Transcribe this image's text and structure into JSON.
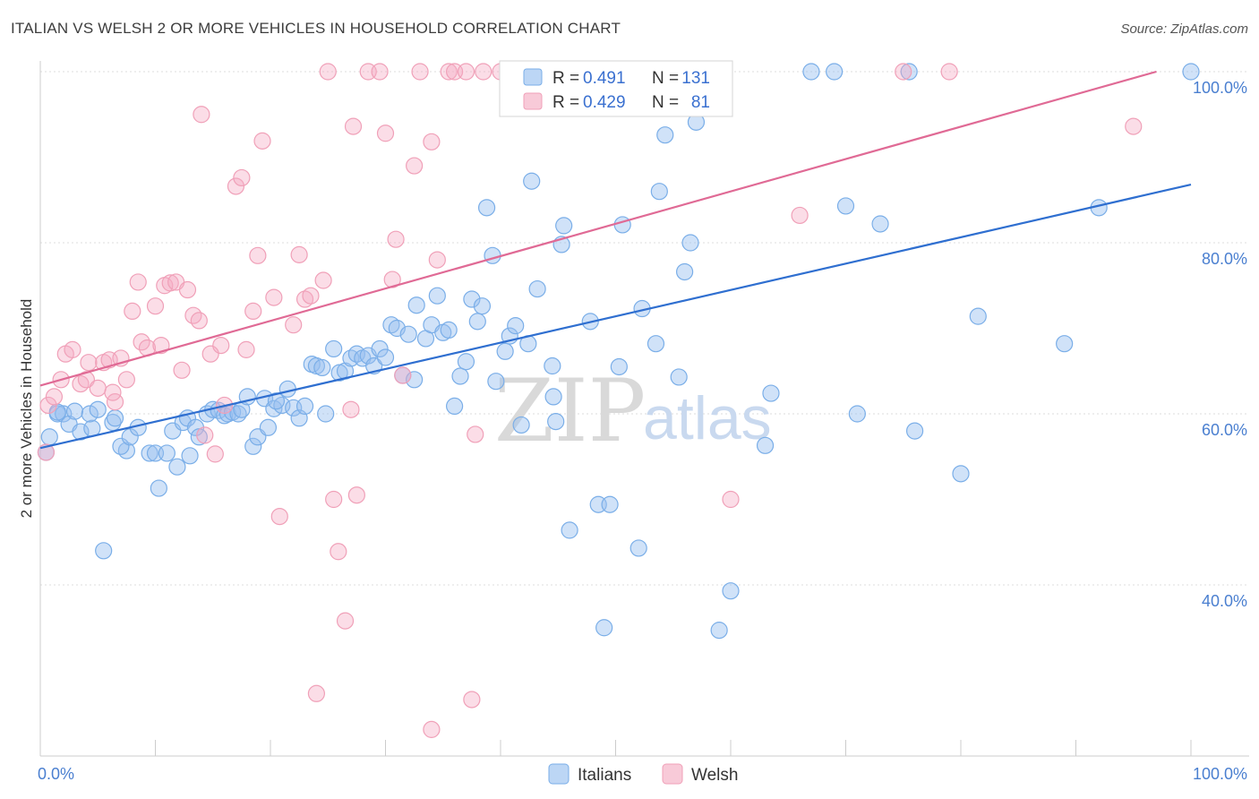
{
  "title": "ITALIAN VS WELSH 2 OR MORE VEHICLES IN HOUSEHOLD CORRELATION CHART",
  "source": "Source: ZipAtlas.com",
  "watermark": {
    "zip": "ZIP",
    "atlas": "atlas"
  },
  "legend_top": [
    {
      "r_label": "R =",
      "r_value": "0.491",
      "n_label": "N =",
      "n_value": "131",
      "color": "#7aaee8"
    },
    {
      "r_label": "R =",
      "r_value": "0.429",
      "n_label": "N =",
      "n_value": "81",
      "color": "#f0a0b8"
    }
  ],
  "legend_bottom": [
    {
      "label": "Italians",
      "color": "#7aaee8"
    },
    {
      "label": "Welsh",
      "color": "#f0a0b8"
    }
  ],
  "chart_data": {
    "type": "scatter",
    "title": "ITALIAN VS WELSH 2 OR MORE VEHICLES IN HOUSEHOLD CORRELATION CHART",
    "xlabel": "",
    "ylabel": "2 or more Vehicles in Household",
    "xlim": [
      0,
      100
    ],
    "ylim": [
      20,
      102
    ],
    "x_tick_labels": [
      "0.0%",
      "100.0%"
    ],
    "y_ticks": [
      40,
      60,
      80,
      100
    ],
    "y_tick_labels": [
      "40.0%",
      "60.0%",
      "80.0%",
      "100.0%"
    ],
    "grid": true,
    "legend": "top-center",
    "series": [
      {
        "name": "Italians",
        "color": "#7aaee8",
        "line_color": "#2f6fd0",
        "trend": {
          "x": [
            0,
            100
          ],
          "y": [
            56.0,
            86.8
          ]
        },
        "points": [
          [
            0.5,
            55.5
          ],
          [
            0.8,
            57.3
          ],
          [
            1.5,
            60.0
          ],
          [
            2.0,
            60.0
          ],
          [
            2.5,
            58.8
          ],
          [
            3.0,
            60.3
          ],
          [
            3.5,
            57.9
          ],
          [
            4.5,
            58.3
          ],
          [
            4.3,
            60.0
          ],
          [
            5.0,
            60.5
          ],
          [
            6.3,
            59.0
          ],
          [
            6.5,
            59.5
          ],
          [
            7.5,
            55.7
          ],
          [
            7.0,
            56.2
          ],
          [
            7.8,
            57.3
          ],
          [
            8.5,
            58.4
          ],
          [
            9.5,
            55.4
          ],
          [
            10.0,
            55.4
          ],
          [
            10.3,
            51.3
          ],
          [
            11.0,
            55.4
          ],
          [
            11.5,
            58.0
          ],
          [
            11.9,
            53.8
          ],
          [
            12.4,
            59.0
          ],
          [
            12.8,
            59.5
          ],
          [
            13.0,
            55.1
          ],
          [
            13.5,
            58.4
          ],
          [
            13.8,
            57.3
          ],
          [
            14.5,
            60.0
          ],
          [
            15.0,
            60.5
          ],
          [
            15.5,
            60.4
          ],
          [
            16.0,
            59.8
          ],
          [
            16.3,
            60.0
          ],
          [
            16.7,
            60.2
          ],
          [
            17.2,
            60.0
          ],
          [
            17.5,
            60.5
          ],
          [
            18.0,
            62.0
          ],
          [
            18.5,
            56.2
          ],
          [
            18.9,
            57.3
          ],
          [
            19.5,
            61.8
          ],
          [
            19.8,
            58.4
          ],
          [
            20.3,
            60.6
          ],
          [
            21.0,
            61.0
          ],
          [
            21.5,
            62.9
          ],
          [
            22.0,
            60.7
          ],
          [
            22.5,
            59.5
          ],
          [
            23.0,
            60.9
          ],
          [
            23.6,
            65.8
          ],
          [
            24.0,
            65.6
          ],
          [
            24.5,
            65.4
          ],
          [
            24.8,
            60.0
          ],
          [
            25.5,
            67.6
          ],
          [
            26.0,
            64.8
          ],
          [
            26.5,
            65.0
          ],
          [
            27.0,
            66.5
          ],
          [
            27.5,
            67.0
          ],
          [
            28.0,
            66.5
          ],
          [
            28.5,
            66.8
          ],
          [
            29.0,
            65.6
          ],
          [
            29.5,
            67.6
          ],
          [
            30.0,
            66.6
          ],
          [
            30.5,
            70.4
          ],
          [
            31.0,
            70.0
          ],
          [
            31.5,
            64.5
          ],
          [
            32.0,
            69.3
          ],
          [
            32.5,
            64.0
          ],
          [
            32.7,
            72.7
          ],
          [
            33.5,
            68.8
          ],
          [
            34.0,
            70.4
          ],
          [
            34.5,
            73.8
          ],
          [
            35.0,
            69.5
          ],
          [
            35.5,
            69.8
          ],
          [
            36.0,
            60.9
          ],
          [
            36.5,
            64.4
          ],
          [
            37.0,
            66.1
          ],
          [
            37.5,
            73.4
          ],
          [
            38.0,
            70.8
          ],
          [
            38.4,
            72.6
          ],
          [
            38.8,
            84.1
          ],
          [
            39.3,
            78.5
          ],
          [
            39.6,
            63.8
          ],
          [
            40.4,
            67.3
          ],
          [
            40.8,
            69.1
          ],
          [
            41.3,
            70.3
          ],
          [
            41.8,
            58.7
          ],
          [
            42.4,
            68.2
          ],
          [
            42.7,
            87.2
          ],
          [
            43.2,
            74.6
          ],
          [
            44.5,
            65.6
          ],
          [
            44.6,
            62.0
          ],
          [
            44.8,
            59.1
          ],
          [
            45.3,
            79.8
          ],
          [
            45.5,
            82.0
          ],
          [
            46.0,
            46.4
          ],
          [
            47.8,
            70.8
          ],
          [
            48.5,
            49.4
          ],
          [
            49.0,
            35.0
          ],
          [
            49.5,
            49.4
          ],
          [
            50.3,
            65.5
          ],
          [
            50.6,
            82.1
          ],
          [
            51.5,
            100.0
          ],
          [
            52.0,
            44.3
          ],
          [
            52.3,
            72.3
          ],
          [
            53.5,
            68.2
          ],
          [
            53.8,
            86.0
          ],
          [
            54.3,
            92.6
          ],
          [
            55.5,
            64.3
          ],
          [
            56.0,
            76.6
          ],
          [
            56.5,
            80.0
          ],
          [
            57.0,
            94.1
          ],
          [
            59.0,
            34.7
          ],
          [
            60.0,
            39.3
          ],
          [
            63.0,
            56.3
          ],
          [
            63.5,
            62.4
          ],
          [
            67.0,
            100.0
          ],
          [
            69.0,
            100.0
          ],
          [
            70.0,
            84.3
          ],
          [
            71.0,
            60.0
          ],
          [
            73.0,
            82.2
          ],
          [
            75.5,
            100.0
          ],
          [
            76.0,
            58.0
          ],
          [
            80.0,
            53.0
          ],
          [
            81.5,
            71.4
          ],
          [
            89.0,
            68.2
          ],
          [
            92.0,
            84.1
          ],
          [
            100.0,
            100.0
          ],
          [
            1.5,
            60.2
          ],
          [
            5.5,
            44.0
          ],
          [
            47.3,
            100.0
          ],
          [
            20.5,
            61.5
          ]
        ]
      },
      {
        "name": "Welsh",
        "color": "#f0a0b8",
        "line_color": "#e06a95",
        "trend": {
          "x": [
            0,
            97
          ],
          "y": [
            63.3,
            100.0
          ]
        },
        "points": [
          [
            0.5,
            55.5
          ],
          [
            0.7,
            61.0
          ],
          [
            1.2,
            62.0
          ],
          [
            1.8,
            64.0
          ],
          [
            2.2,
            67.0
          ],
          [
            2.8,
            67.5
          ],
          [
            3.5,
            63.5
          ],
          [
            4.0,
            64.0
          ],
          [
            4.2,
            66.0
          ],
          [
            5.0,
            63.0
          ],
          [
            5.5,
            66.0
          ],
          [
            6.0,
            66.3
          ],
          [
            6.5,
            61.4
          ],
          [
            6.3,
            62.5
          ],
          [
            7.0,
            66.5
          ],
          [
            7.5,
            64.0
          ],
          [
            8.0,
            72.0
          ],
          [
            8.5,
            75.4
          ],
          [
            8.8,
            68.4
          ],
          [
            9.3,
            67.7
          ],
          [
            10.0,
            72.6
          ],
          [
            10.5,
            68.0
          ],
          [
            10.8,
            75.0
          ],
          [
            11.3,
            75.3
          ],
          [
            11.8,
            75.4
          ],
          [
            12.3,
            65.1
          ],
          [
            12.8,
            74.5
          ],
          [
            13.3,
            71.5
          ],
          [
            13.8,
            70.9
          ],
          [
            14.3,
            57.5
          ],
          [
            14.8,
            67.0
          ],
          [
            15.2,
            55.3
          ],
          [
            15.7,
            68.0
          ],
          [
            16.0,
            61.0
          ],
          [
            17.0,
            86.6
          ],
          [
            17.5,
            87.6
          ],
          [
            17.9,
            67.5
          ],
          [
            18.5,
            72.0
          ],
          [
            18.9,
            78.5
          ],
          [
            19.3,
            91.9
          ],
          [
            20.3,
            73.6
          ],
          [
            20.8,
            48.0
          ],
          [
            22.0,
            70.4
          ],
          [
            22.5,
            78.6
          ],
          [
            23.0,
            73.4
          ],
          [
            23.5,
            73.8
          ],
          [
            24.6,
            75.6
          ],
          [
            25.0,
            100.0
          ],
          [
            25.5,
            50.0
          ],
          [
            25.9,
            43.9
          ],
          [
            26.5,
            35.8
          ],
          [
            27.0,
            60.5
          ],
          [
            27.5,
            50.5
          ],
          [
            27.2,
            93.6
          ],
          [
            28.5,
            100.0
          ],
          [
            29.5,
            100.0
          ],
          [
            30.0,
            92.8
          ],
          [
            30.6,
            75.7
          ],
          [
            30.9,
            80.4
          ],
          [
            31.5,
            64.5
          ],
          [
            32.5,
            89.0
          ],
          [
            33.0,
            100.0
          ],
          [
            34.0,
            91.8
          ],
          [
            34.5,
            78.0
          ],
          [
            35.5,
            100.0
          ],
          [
            36.0,
            100.0
          ],
          [
            37.0,
            100.0
          ],
          [
            37.5,
            26.6
          ],
          [
            37.8,
            57.6
          ],
          [
            38.5,
            100.0
          ],
          [
            24.0,
            27.3
          ],
          [
            34.0,
            23.1
          ],
          [
            40.0,
            100.0
          ],
          [
            45.0,
            100.0
          ],
          [
            48.0,
            100.0
          ],
          [
            60.0,
            50.0
          ],
          [
            66.0,
            83.2
          ],
          [
            75.0,
            100.0
          ],
          [
            79.0,
            100.0
          ],
          [
            95.0,
            93.6
          ],
          [
            14.0,
            95.0
          ]
        ]
      }
    ]
  }
}
